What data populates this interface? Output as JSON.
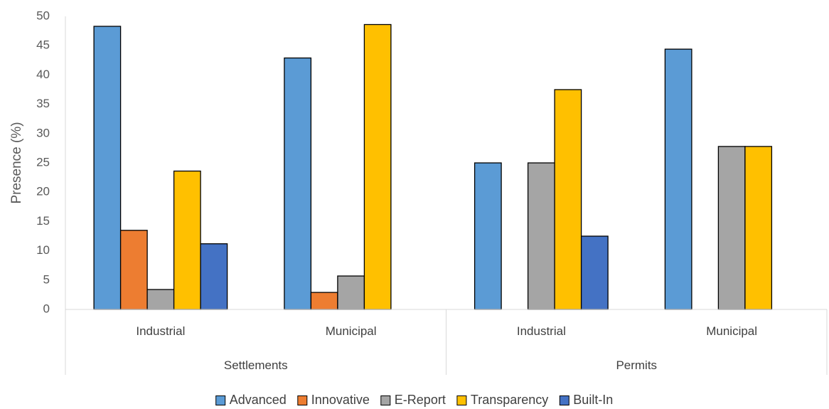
{
  "chart_data": {
    "type": "bar",
    "ylabel": "Presence (%)",
    "ylim": [
      0,
      50
    ],
    "yticks": [
      0,
      5,
      10,
      15,
      20,
      25,
      30,
      35,
      40,
      45,
      50
    ],
    "grid": false,
    "legend_position": "bottom",
    "groups": [
      {
        "label": "Settlements",
        "categories": [
          "Industrial",
          "Municipal"
        ]
      },
      {
        "label": "Permits",
        "categories": [
          "Industrial",
          "Municipal"
        ]
      }
    ],
    "categories": [
      "Industrial",
      "Municipal",
      "Industrial",
      "Municipal"
    ],
    "series": [
      {
        "name": "Advanced",
        "color": "#5B9BD5",
        "values": [
          48.3,
          42.9,
          25.0,
          44.4
        ]
      },
      {
        "name": "Innovative",
        "color": "#ED7D31",
        "values": [
          13.5,
          2.9,
          0,
          0
        ]
      },
      {
        "name": "E-Report",
        "color": "#A5A5A5",
        "values": [
          3.4,
          5.7,
          25.0,
          27.8
        ]
      },
      {
        "name": "Transparency",
        "color": "#FFC000",
        "values": [
          23.6,
          48.6,
          37.5,
          27.8
        ]
      },
      {
        "name": "Built-In",
        "color": "#4472C4",
        "values": [
          11.2,
          0,
          12.5,
          0
        ]
      }
    ]
  }
}
